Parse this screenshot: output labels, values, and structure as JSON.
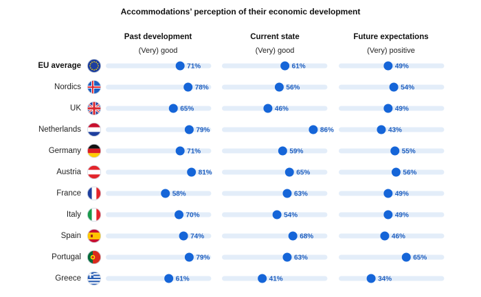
{
  "colors": {
    "track": "#e3edf9",
    "dot": "#1565d8",
    "value_text": "#1f5fbf"
  },
  "chart_data": {
    "type": "dot",
    "title": "Accommodations’ perception of their economic development",
    "value_suffix": "%",
    "scale": [
      0,
      100
    ],
    "columns": [
      {
        "name": "Past development",
        "subtitle": "(Very) good"
      },
      {
        "name": "Current state",
        "subtitle": "(Very) good"
      },
      {
        "name": "Future expectations",
        "subtitle": "(Very) positive"
      }
    ],
    "rows": [
      {
        "label": "EU average",
        "flag": "eu-flag-icon",
        "bold": true,
        "values": [
          71,
          61,
          49
        ]
      },
      {
        "label": "Nordics",
        "flag": "nordics-flag-icon",
        "values": [
          78,
          56,
          54
        ]
      },
      {
        "label": "UK",
        "flag": "uk-flag-icon",
        "values": [
          65,
          46,
          49
        ]
      },
      {
        "label": "Netherlands",
        "flag": "netherlands-flag-icon",
        "values": [
          79,
          86,
          43
        ]
      },
      {
        "label": "Germany",
        "flag": "germany-flag-icon",
        "values": [
          71,
          59,
          55
        ]
      },
      {
        "label": "Austria",
        "flag": "austria-flag-icon",
        "values": [
          81,
          65,
          56
        ]
      },
      {
        "label": "France",
        "flag": "france-flag-icon",
        "values": [
          58,
          63,
          49
        ]
      },
      {
        "label": "Italy",
        "flag": "italy-flag-icon",
        "values": [
          70,
          54,
          49
        ]
      },
      {
        "label": "Spain",
        "flag": "spain-flag-icon",
        "values": [
          74,
          68,
          46
        ]
      },
      {
        "label": "Portugal",
        "flag": "portugal-flag-icon",
        "values": [
          79,
          63,
          65
        ]
      },
      {
        "label": "Greece",
        "flag": "greece-flag-icon",
        "values": [
          61,
          41,
          34
        ]
      }
    ]
  }
}
